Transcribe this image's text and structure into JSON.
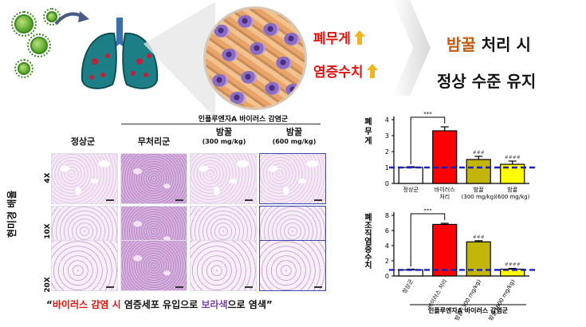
{
  "infographic": {
    "effect_1": "폐무게",
    "effect_2": "염증수치",
    "result_accent": "밤꿀",
    "result_line1_rest": " 처리 시",
    "result_line2": "정상 수준 유지",
    "colors": {
      "effect_text": "#e3120b",
      "up_arrow": "#f2b61c",
      "accent": "#c55a11"
    }
  },
  "histology": {
    "group_title": "인플루엔자A 바이러스 감염군",
    "columns": [
      {
        "label": "정상군",
        "sub": ""
      },
      {
        "label": "무처리군",
        "sub": ""
      },
      {
        "label": "밤꿀",
        "sub": "(300 mg/kg)"
      },
      {
        "label": "밤꿀",
        "sub": "(600 mg/kg)"
      }
    ],
    "magnifications": [
      "4X",
      "10X",
      "20X"
    ],
    "side_label": "현미경 배율"
  },
  "caption": {
    "open_quote": "“",
    "red_part": "바이러스 감염 시",
    "middle": " 염증세포 유입으로 ",
    "purple_part": "보라색",
    "end": "으로 염색”"
  },
  "chart_data": [
    {
      "type": "bar",
      "ylabel": "폐무게",
      "categories": [
        "정상군",
        "바이러스 처리",
        "밤꿀 (300 mg/kg)",
        "밤꿀 (600 mg/kg)"
      ],
      "values": [
        1.0,
        3.3,
        1.5,
        1.2
      ],
      "errors": [
        0.05,
        0.25,
        0.2,
        0.2
      ],
      "significance": [
        "",
        "",
        "###",
        "####"
      ],
      "bracket_label": "***",
      "ylim": [
        0,
        4
      ],
      "yticks": [
        0,
        1,
        2,
        3,
        4
      ],
      "reference_line": 1.0,
      "bar_colors": [
        "#ffffff",
        "#ff0000",
        "#c2b60a",
        "#ffff00"
      ]
    },
    {
      "type": "bar",
      "ylabel": "폐조직 염증수치",
      "categories": [
        "정상군",
        "바이러스 처리",
        "밤꿀 (300 mg/kg)",
        "밤꿀 (600 mg/kg)"
      ],
      "values": [
        0.8,
        6.8,
        4.5,
        0.9
      ],
      "errors": [
        0.1,
        0.15,
        0.15,
        0.1
      ],
      "significance": [
        "",
        "",
        "###",
        "####"
      ],
      "bracket_label": "***",
      "ylim": [
        0,
        8
      ],
      "yticks": [
        0,
        2,
        4,
        6,
        8
      ],
      "reference_line": 0.8,
      "xgroup_label": "인플루엔자A 바이러스 감염군",
      "bar_colors": [
        "#ffffff",
        "#ff0000",
        "#c2b60a",
        "#ffff00"
      ]
    }
  ]
}
